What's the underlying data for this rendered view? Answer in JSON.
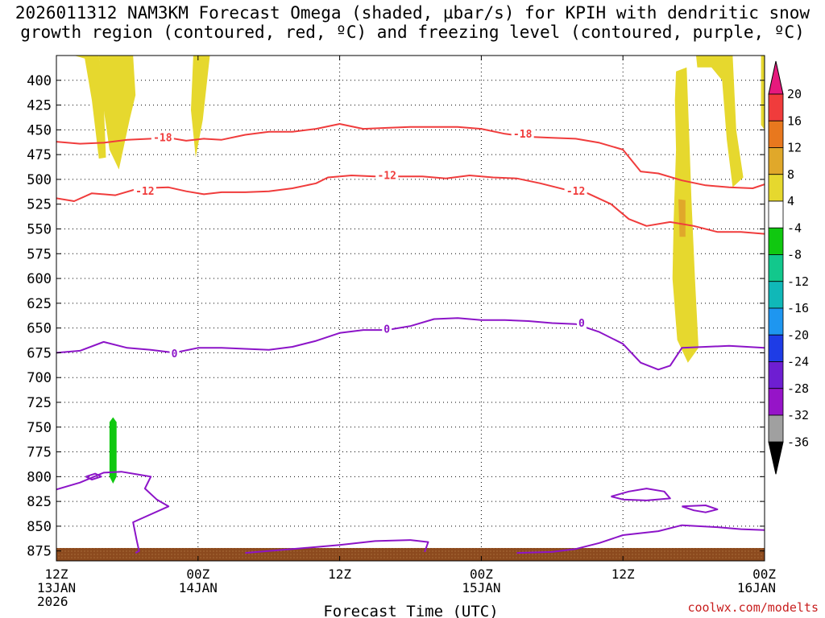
{
  "title_line1": "2026011312 NAM3KM Forecast Omega (shaded, µbar/s) for KPIH with dendritic snow",
  "title_line2": "growth region (contoured, red, ºC) and freezing level (contoured, purple, ºC)",
  "credit": "coolwx.com/modelts",
  "chart_data": {
    "type": "contour",
    "xlabel": "Forecast Time (UTC)",
    "ylabel": "",
    "x_range_hours": [
      0,
      60
    ],
    "y_range_mb": [
      375,
      885
    ],
    "y_ticks": [
      400,
      425,
      450,
      475,
      500,
      525,
      550,
      575,
      600,
      625,
      650,
      675,
      700,
      725,
      750,
      775,
      800,
      825,
      850,
      875
    ],
    "x_ticks": [
      {
        "hour": 0,
        "lines": [
          "12Z",
          "13JAN",
          "2026"
        ]
      },
      {
        "hour": 12,
        "lines": [
          "00Z",
          "14JAN"
        ]
      },
      {
        "hour": 24,
        "lines": [
          "12Z"
        ]
      },
      {
        "hour": 36,
        "lines": [
          "00Z",
          "15JAN"
        ]
      },
      {
        "hour": 48,
        "lines": [
          "12Z"
        ]
      },
      {
        "hour": 60,
        "lines": [
          "00Z",
          "16JAN"
        ]
      }
    ],
    "grid": true,
    "colorbar": {
      "labels": [
        "20",
        "16",
        "12",
        "8",
        "4",
        "-4",
        "-8",
        "-12",
        "-16",
        "-20",
        "-24",
        "-28",
        "-32",
        "-36"
      ],
      "colors": [
        "#f03c3c",
        "#e8781e",
        "#e0a82a",
        "#e6d82e",
        "#ffffff",
        "#10c810",
        "#12c88c",
        "#10b8b8",
        "#1e96f0",
        "#1e3ce6",
        "#6e1ed2",
        "#9614c8",
        "#a0a0a0"
      ],
      "top_arrow_color": "#e6197d",
      "bottom_arrow_color": "#000000"
    },
    "contours": [
      {
        "label": "-18",
        "color": "#f03c3c",
        "label_positions": [
          [
            9,
            458
          ],
          [
            39.5,
            454
          ]
        ],
        "points": [
          [
            0,
            462
          ],
          [
            2,
            464
          ],
          [
            4,
            463
          ],
          [
            6,
            460
          ],
          [
            8,
            459
          ],
          [
            9.5,
            458
          ],
          [
            11,
            461
          ],
          [
            12.5,
            459
          ],
          [
            14,
            460
          ],
          [
            16,
            455
          ],
          [
            18,
            452
          ],
          [
            20,
            452
          ],
          [
            22,
            449
          ],
          [
            24,
            444
          ],
          [
            26,
            449
          ],
          [
            28,
            448
          ],
          [
            30,
            447
          ],
          [
            32,
            447
          ],
          [
            34,
            447
          ],
          [
            36,
            449
          ],
          [
            38,
            454
          ],
          [
            40,
            457
          ],
          [
            42,
            458
          ],
          [
            44,
            459
          ],
          [
            46,
            463
          ],
          [
            48,
            470
          ],
          [
            49.5,
            492
          ],
          [
            51,
            494
          ],
          [
            53,
            501
          ],
          [
            55,
            506
          ],
          [
            57,
            508
          ],
          [
            59,
            509
          ],
          [
            60,
            505
          ]
        ]
      },
      {
        "label": "-12",
        "color": "#f03c3c",
        "label_positions": [
          [
            7.5,
            512
          ],
          [
            28,
            496
          ],
          [
            44,
            512
          ]
        ],
        "points": [
          [
            0,
            519
          ],
          [
            1.5,
            522
          ],
          [
            3,
            514
          ],
          [
            5,
            516
          ],
          [
            7,
            509
          ],
          [
            9.5,
            508
          ],
          [
            11,
            512
          ],
          [
            12.5,
            515
          ],
          [
            14,
            513
          ],
          [
            16,
            513
          ],
          [
            18,
            512
          ],
          [
            20,
            509
          ],
          [
            22,
            504
          ],
          [
            23,
            498
          ],
          [
            25,
            496
          ],
          [
            27,
            497
          ],
          [
            29,
            497
          ],
          [
            31,
            497
          ],
          [
            33,
            499
          ],
          [
            35,
            496
          ],
          [
            37,
            498
          ],
          [
            39,
            499
          ],
          [
            41,
            504
          ],
          [
            43,
            510
          ],
          [
            45,
            514
          ],
          [
            47,
            525
          ],
          [
            48.5,
            540
          ],
          [
            50,
            547
          ],
          [
            52,
            543
          ],
          [
            54,
            547
          ],
          [
            56,
            553
          ],
          [
            58,
            553
          ],
          [
            60,
            555
          ]
        ]
      },
      {
        "label": "0",
        "color": "#8c14c8",
        "label_positions": [
          [
            10,
            676
          ],
          [
            28,
            651
          ],
          [
            44.5,
            645
          ]
        ],
        "points": [
          [
            0,
            675
          ],
          [
            2,
            673
          ],
          [
            4,
            664
          ],
          [
            6,
            670
          ],
          [
            8,
            672
          ],
          [
            10,
            675
          ],
          [
            12,
            670
          ],
          [
            14,
            670
          ],
          [
            16,
            671
          ],
          [
            18,
            672
          ],
          [
            20,
            669
          ],
          [
            22,
            663
          ],
          [
            24,
            655
          ],
          [
            26,
            652
          ],
          [
            28,
            652
          ],
          [
            30,
            648
          ],
          [
            32,
            641
          ],
          [
            34,
            640
          ],
          [
            36,
            642
          ],
          [
            38,
            642
          ],
          [
            40,
            643
          ],
          [
            42,
            645
          ],
          [
            44,
            646
          ],
          [
            46,
            654
          ],
          [
            48,
            666
          ],
          [
            49.5,
            685
          ],
          [
            51,
            692
          ],
          [
            52,
            688
          ],
          [
            53,
            670
          ],
          [
            55,
            669
          ],
          [
            57,
            668
          ],
          [
            60,
            670
          ]
        ]
      },
      {
        "label": "",
        "color": "#8c14c8",
        "label_positions": [],
        "points": [
          [
            0,
            813
          ],
          [
            2,
            806
          ],
          [
            3.2,
            800
          ],
          [
            4,
            796
          ],
          [
            5.5,
            795
          ],
          [
            7,
            798
          ],
          [
            8,
            800
          ],
          [
            7.5,
            812
          ],
          [
            8.5,
            823
          ],
          [
            9.5,
            830
          ],
          [
            6.5,
            846
          ],
          [
            6.8,
            864
          ],
          [
            7,
            875
          ],
          [
            6.7,
            877
          ]
        ]
      },
      {
        "label": "",
        "color": "#8c14c8",
        "label_positions": [],
        "points": [
          [
            2.5,
            800
          ],
          [
            3,
            803
          ],
          [
            3.8,
            800
          ],
          [
            3.3,
            797
          ],
          [
            2.5,
            800
          ]
        ]
      },
      {
        "label": "",
        "color": "#8c14c8",
        "label_positions": [],
        "points": [
          [
            16,
            877
          ],
          [
            20,
            873
          ],
          [
            24,
            869
          ],
          [
            27,
            865
          ],
          [
            30,
            864
          ],
          [
            31.5,
            866
          ],
          [
            31.2,
            876
          ]
        ]
      },
      {
        "label": "",
        "color": "#8c14c8",
        "label_positions": [],
        "points": [
          [
            39,
            877
          ],
          [
            42,
            876
          ],
          [
            44,
            873
          ],
          [
            46,
            867
          ],
          [
            48,
            859
          ],
          [
            51,
            855
          ],
          [
            53,
            849
          ],
          [
            56,
            851
          ],
          [
            58,
            853
          ],
          [
            60,
            854
          ]
        ]
      },
      {
        "label": "",
        "color": "#8c14c8",
        "label_positions": [],
        "points": [
          [
            47,
            820
          ],
          [
            48.5,
            815
          ],
          [
            50,
            812
          ],
          [
            51.5,
            815
          ],
          [
            52,
            822
          ],
          [
            50,
            824
          ],
          [
            48,
            823
          ],
          [
            47,
            820
          ]
        ]
      },
      {
        "label": "",
        "color": "#8c14c8",
        "label_positions": [],
        "points": [
          [
            53,
            830
          ],
          [
            55,
            829
          ],
          [
            56,
            833
          ],
          [
            55,
            836
          ],
          [
            54,
            834
          ],
          [
            53,
            830
          ]
        ]
      }
    ],
    "shaded_regions": [
      {
        "value": 4,
        "color": "#e6d82e",
        "points": [
          [
            1.5,
            375
          ],
          [
            3.6,
            375
          ],
          [
            4,
            420
          ],
          [
            4.2,
            478
          ],
          [
            3.6,
            479
          ],
          [
            3,
            420
          ],
          [
            2.4,
            378
          ]
        ]
      },
      {
        "value": 4,
        "color": "#e6d82e",
        "points": [
          [
            3.6,
            375
          ],
          [
            6.5,
            375
          ],
          [
            6.7,
            415
          ],
          [
            6.2,
            440
          ],
          [
            5.3,
            490
          ],
          [
            4.5,
            470
          ],
          [
            3.9,
            420
          ]
        ]
      },
      {
        "value": 4,
        "color": "#e6d82e",
        "points": [
          [
            11.6,
            375
          ],
          [
            13,
            375
          ],
          [
            12.4,
            440
          ],
          [
            11.8,
            478
          ],
          [
            11.4,
            430
          ]
        ]
      },
      {
        "value": 4,
        "color": "#e6d82e",
        "points": [
          [
            52.5,
            391
          ],
          [
            53.4,
            387
          ],
          [
            53.6,
            450
          ],
          [
            53.8,
            520
          ],
          [
            54.1,
            600
          ],
          [
            54.4,
            670
          ],
          [
            53.5,
            685
          ],
          [
            52.6,
            662
          ],
          [
            52.2,
            600
          ],
          [
            52.3,
            540
          ],
          [
            52.5,
            470
          ],
          [
            52.4,
            420
          ]
        ]
      },
      {
        "value": 4,
        "color": "#e6d82e",
        "points": [
          [
            54.2,
            375
          ],
          [
            57.3,
            375
          ],
          [
            57.6,
            450
          ],
          [
            58.2,
            498
          ],
          [
            57.3,
            508
          ],
          [
            56.8,
            460
          ],
          [
            56.4,
            400
          ],
          [
            55.5,
            387
          ],
          [
            54.3,
            387
          ]
        ]
      },
      {
        "value": 4,
        "color": "#e6d82e",
        "points": [
          [
            59.7,
            375
          ],
          [
            60,
            375
          ],
          [
            60,
            450
          ],
          [
            59.7,
            445
          ]
        ]
      },
      {
        "value": 8,
        "color": "#e0a82a",
        "points": [
          [
            52.7,
            520
          ],
          [
            53.3,
            521
          ],
          [
            53.3,
            558
          ],
          [
            52.8,
            558
          ]
        ]
      },
      {
        "value": -4,
        "color": "#10c810",
        "points": [
          [
            4.8,
            740
          ],
          [
            5.1,
            745
          ],
          [
            5.1,
            800
          ],
          [
            4.8,
            807
          ],
          [
            4.5,
            800
          ],
          [
            4.5,
            745
          ]
        ]
      }
    ],
    "terrain": {
      "color": "#8c4a1e",
      "surface_mb": 872
    }
  }
}
